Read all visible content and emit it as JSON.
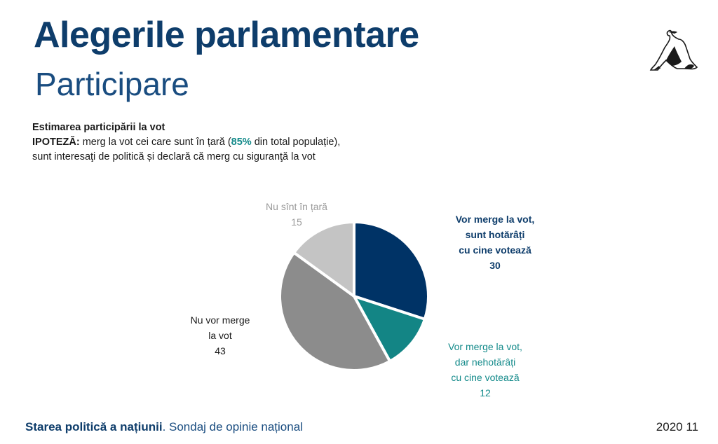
{
  "header": {
    "title": "Alegerile parlamentare",
    "subtitle": "Participare"
  },
  "description": {
    "heading": "Estimarea participării la vot",
    "hypothesis_label": "IPOTEZĂ:",
    "line1_a": "merg la vot cei care sunt în țară (",
    "line1_highlight": "85%",
    "line1_b": "din total populație),",
    "line2": "sunt interesaţi de politică și declară că merg cu siguranţă la vot"
  },
  "chart_data": {
    "type": "pie",
    "slices": [
      {
        "label": "Vor merge la vot, sunt hotărâți cu cine votează",
        "label_lines": [
          "Vor merge la vot,",
          "sunt hotărâți",
          "cu cine votează"
        ],
        "value": 30,
        "color": "#003366"
      },
      {
        "label": "Vor merge la vot, dar nehotărâți cu cine votează",
        "label_lines": [
          "Vor merge la vot,",
          "dar nehotărâți",
          "cu cine votează"
        ],
        "value": 12,
        "color": "#138585"
      },
      {
        "label": "Nu vor merge la vot",
        "label_lines": [
          "Nu vor merge",
          "la vot"
        ],
        "value": 43,
        "color": "#8c8c8c"
      },
      {
        "label": "Nu sînt în țară",
        "label_lines": [
          "Nu sînt în țară"
        ],
        "value": 15,
        "color": "#c4c4c4"
      }
    ],
    "label_colors": [
      "#0e3d6b",
      "#138a8a",
      "#1a1a1a",
      "#9a9a9a"
    ]
  },
  "footer": {
    "title_bold": "Starea politică a națiunii",
    "title_rest": ". Sondaj de opinie național",
    "date": "2020 11"
  },
  "logo": {
    "icon": "figure-logo-icon"
  }
}
